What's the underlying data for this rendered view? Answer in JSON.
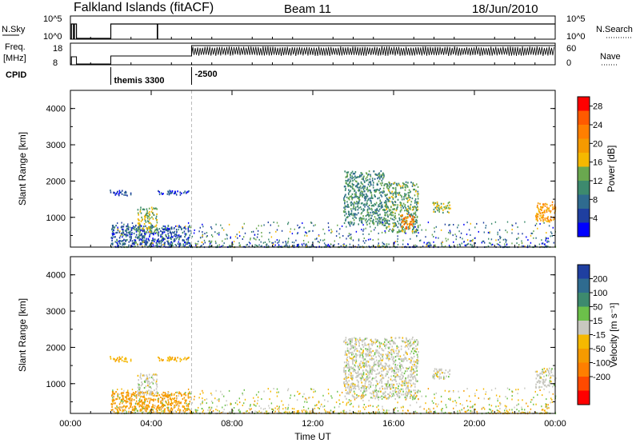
{
  "header": {
    "title": "Falkland Islands (fitACF)",
    "beam": "Beam 11",
    "date": "18/Jun/2010"
  },
  "top_panels": {
    "nsky_label": "N.Sky",
    "nsearch_label": "N.Search",
    "noise_ticks": [
      "10^5",
      "10^0"
    ],
    "freq_label_1": "Freq.",
    "freq_label_2": "[MHz]",
    "freq_ticks": [
      "18",
      "8"
    ],
    "nave_label": "Nave",
    "nave_ticks": [
      "60",
      "0"
    ],
    "cpid_label": "CPID",
    "cpid_entries": [
      {
        "text": "themis 3300",
        "hour": 2.0
      },
      {
        "text": "-2500",
        "hour": 6.0
      }
    ]
  },
  "chart_data": [
    {
      "type": "heatmap",
      "title": "",
      "xlabel": "Time UT",
      "ylabel": "Slant Range [km]",
      "xlim": [
        0,
        24
      ],
      "ylim": [
        180,
        4500
      ],
      "x_ticks": [
        "00:00",
        "04:00",
        "08:00",
        "12:00",
        "16:00",
        "20:00",
        "00:00"
      ],
      "y_ticks": [
        "1000",
        "2000",
        "3000",
        "4000"
      ],
      "colorbar": {
        "label": "Power [dB]",
        "ticks": [
          "4",
          "8",
          "12",
          "16",
          "20",
          "24",
          "28"
        ],
        "range": [
          0,
          30
        ],
        "colors": [
          "#0000ff",
          "#1f3fa0",
          "#2f6b8f",
          "#3d8a6e",
          "#6aa84f",
          "#f5b800",
          "#f59a00",
          "#ff7f00",
          "#ff5a00",
          "#ff0000"
        ]
      },
      "echo_regions": [
        {
          "t0": 1.9,
          "t1": 3.0,
          "r0": 1620,
          "r1": 1780,
          "level": 4
        },
        {
          "t0": 4.2,
          "t1": 5.9,
          "r0": 1640,
          "r1": 1760,
          "level": 4
        },
        {
          "t0": 2.0,
          "t1": 5.9,
          "r0": 250,
          "r1": 800,
          "level": 6
        },
        {
          "t0": 3.3,
          "t1": 4.3,
          "r0": 600,
          "r1": 1300,
          "level": 14
        },
        {
          "t0": 13.5,
          "t1": 15.5,
          "r0": 800,
          "r1": 2300,
          "level": 10
        },
        {
          "t0": 15.5,
          "t1": 17.2,
          "r0": 600,
          "r1": 2000,
          "level": 12
        },
        {
          "t0": 16.3,
          "t1": 17.0,
          "r0": 700,
          "r1": 1100,
          "level": 22
        },
        {
          "t0": 17.9,
          "t1": 18.8,
          "r0": 1150,
          "r1": 1450,
          "level": 14
        },
        {
          "t0": 23.0,
          "t1": 24.0,
          "r0": 900,
          "r1": 1450,
          "level": 20
        }
      ]
    },
    {
      "type": "heatmap",
      "title": "",
      "xlabel": "Time UT",
      "ylabel": "Slant Range [km]",
      "xlim": [
        0,
        24
      ],
      "ylim": [
        180,
        4500
      ],
      "x_ticks": [
        "00:00",
        "04:00",
        "08:00",
        "12:00",
        "16:00",
        "20:00",
        "00:00"
      ],
      "y_ticks": [
        "1000",
        "2000",
        "3000",
        "4000"
      ],
      "colorbar": {
        "label": "Velocity [m s⁻¹]",
        "ticks": [
          "200",
          "100",
          "50",
          "15",
          "-15",
          "-50",
          "-100",
          "-200"
        ],
        "colors": [
          "#1f3fa0",
          "#2f6b8f",
          "#3d8a6e",
          "#6cc04a",
          "#c8c8c0",
          "#f5b800",
          "#f59a00",
          "#ff7f00",
          "#ff4a00",
          "#ff0000"
        ]
      },
      "echo_regions": [
        {
          "t0": 1.9,
          "t1": 3.0,
          "r0": 1620,
          "r1": 1780,
          "vel": -40
        },
        {
          "t0": 4.2,
          "t1": 5.9,
          "r0": 1640,
          "r1": 1760,
          "vel": -40
        },
        {
          "t0": 2.0,
          "t1": 5.9,
          "r0": 250,
          "r1": 800,
          "vel": -80
        },
        {
          "t0": 3.3,
          "t1": 4.3,
          "r0": 700,
          "r1": 1300,
          "vel": 0
        },
        {
          "t0": 13.5,
          "t1": 17.2,
          "r0": 600,
          "r1": 2300,
          "vel": 0
        },
        {
          "t0": 17.9,
          "t1": 18.8,
          "r0": 1150,
          "r1": 1450,
          "vel": 0
        },
        {
          "t0": 23.0,
          "t1": 24.0,
          "r0": 900,
          "r1": 1450,
          "vel": 0
        }
      ]
    }
  ]
}
